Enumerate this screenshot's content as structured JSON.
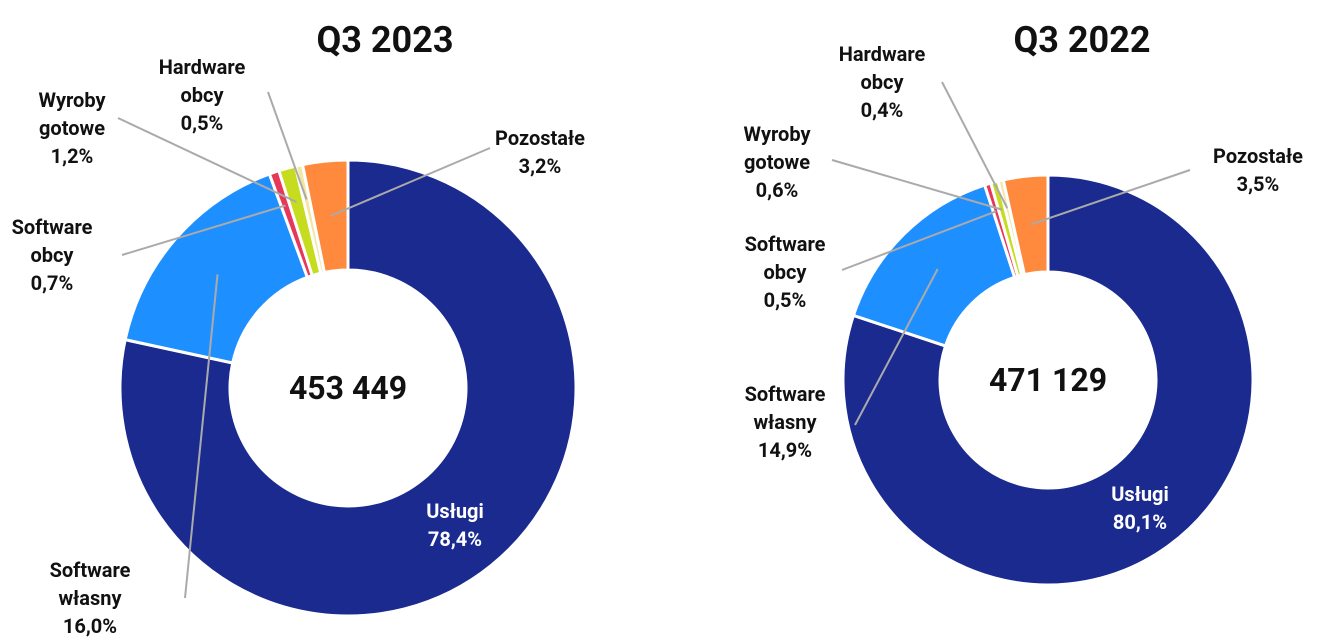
{
  "chart_data": [
    {
      "type": "pie",
      "title": "Q3 2023",
      "center_label": "453 449",
      "categories": [
        "Usługi",
        "Software własny",
        "Software obcy",
        "Wyroby gotowe",
        "Hardware obcy",
        "Pozostałe"
      ],
      "values": [
        78.4,
        16.0,
        0.7,
        1.2,
        0.5,
        3.2
      ],
      "value_labels": [
        "78,4%",
        "16,0%",
        "0,7%",
        "1,2%",
        "0,5%",
        "3,2%"
      ],
      "colors": [
        "#1a2a8f",
        "#1e8fff",
        "#e8385a",
        "#c6dc1e",
        "#f2e6a0",
        "#ff8a3d"
      ]
    },
    {
      "type": "pie",
      "title": "Q3 2022",
      "center_label": "471 129",
      "categories": [
        "Usługi",
        "Software własny",
        "Software obcy",
        "Wyroby gotowe",
        "Hardware obcy",
        "Pozostałe"
      ],
      "values": [
        80.1,
        14.9,
        0.5,
        0.6,
        0.4,
        3.5
      ],
      "value_labels": [
        "80,1%",
        "14,9%",
        "0,5%",
        "0,6%",
        "0,4%",
        "3,5%"
      ],
      "colors": [
        "#1a2a8f",
        "#1e8fff",
        "#e8385a",
        "#c6dc1e",
        "#f2e6a0",
        "#ff8a3d"
      ]
    }
  ]
}
